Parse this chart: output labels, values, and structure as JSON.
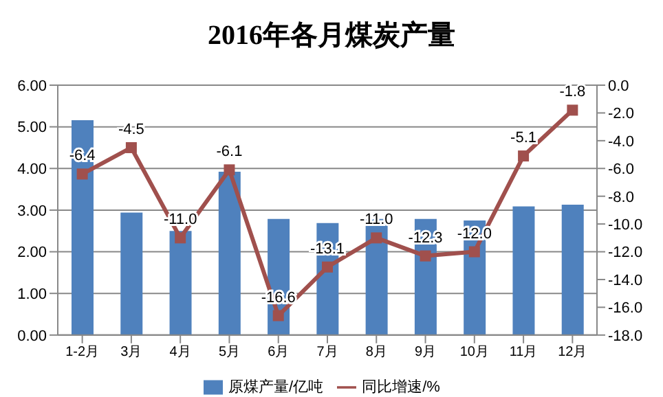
{
  "chart_data": {
    "type": "bar",
    "title": "2016年各月煤炭产量",
    "categories": [
      "1-2月",
      "3月",
      "4月",
      "5月",
      "6月",
      "7月",
      "8月",
      "9月",
      "10月",
      "11月",
      "12月"
    ],
    "series": [
      {
        "name": "原煤产量/亿吨",
        "color": "#4f81bd",
        "values": [
          5.16,
          2.94,
          2.5,
          3.92,
          2.79,
          2.69,
          2.79,
          2.79,
          2.75,
          3.09,
          3.13
        ]
      },
      {
        "name": "同比增速/%",
        "type": "line",
        "axis": "y2",
        "color": "#a0504d",
        "marker": "square",
        "values": [
          -6.4,
          -4.5,
          -11.0,
          -6.1,
          -16.6,
          -13.1,
          -11.0,
          -12.3,
          -12.0,
          -5.1,
          -1.8
        ],
        "value_labels": [
          "-6.4",
          "-4.5",
          "-11.0",
          "-6.1",
          "-16.6",
          "-13.1",
          "-11.0",
          "-12.3",
          "-12.0",
          "-5.1",
          "-1.8"
        ]
      }
    ],
    "ylim": [
      0,
      6
    ],
    "yticks": [
      {
        "value": 0,
        "label": "0.00"
      },
      {
        "value": 1,
        "label": "1.00"
      },
      {
        "value": 2,
        "label": "2.00"
      },
      {
        "value": 3,
        "label": "3.00"
      },
      {
        "value": 4,
        "label": "4.00"
      },
      {
        "value": 5,
        "label": "5.00"
      },
      {
        "value": 6,
        "label": "6.00"
      }
    ],
    "y2lim": [
      -18,
      0
    ],
    "y2ticks": [
      {
        "value": 0,
        "label": "0.0"
      },
      {
        "value": -2,
        "label": "-2.0"
      },
      {
        "value": -4,
        "label": "-4.0"
      },
      {
        "value": -6,
        "label": "-6.0"
      },
      {
        "value": -8,
        "label": "-8.0"
      },
      {
        "value": -10,
        "label": "-10.0"
      },
      {
        "value": -12,
        "label": "-12.0"
      },
      {
        "value": -14,
        "label": "-14.0"
      },
      {
        "value": -16,
        "label": "-16.0"
      },
      {
        "value": -18,
        "label": "-18.0"
      }
    ],
    "grid": "y",
    "legend": "bottom"
  }
}
